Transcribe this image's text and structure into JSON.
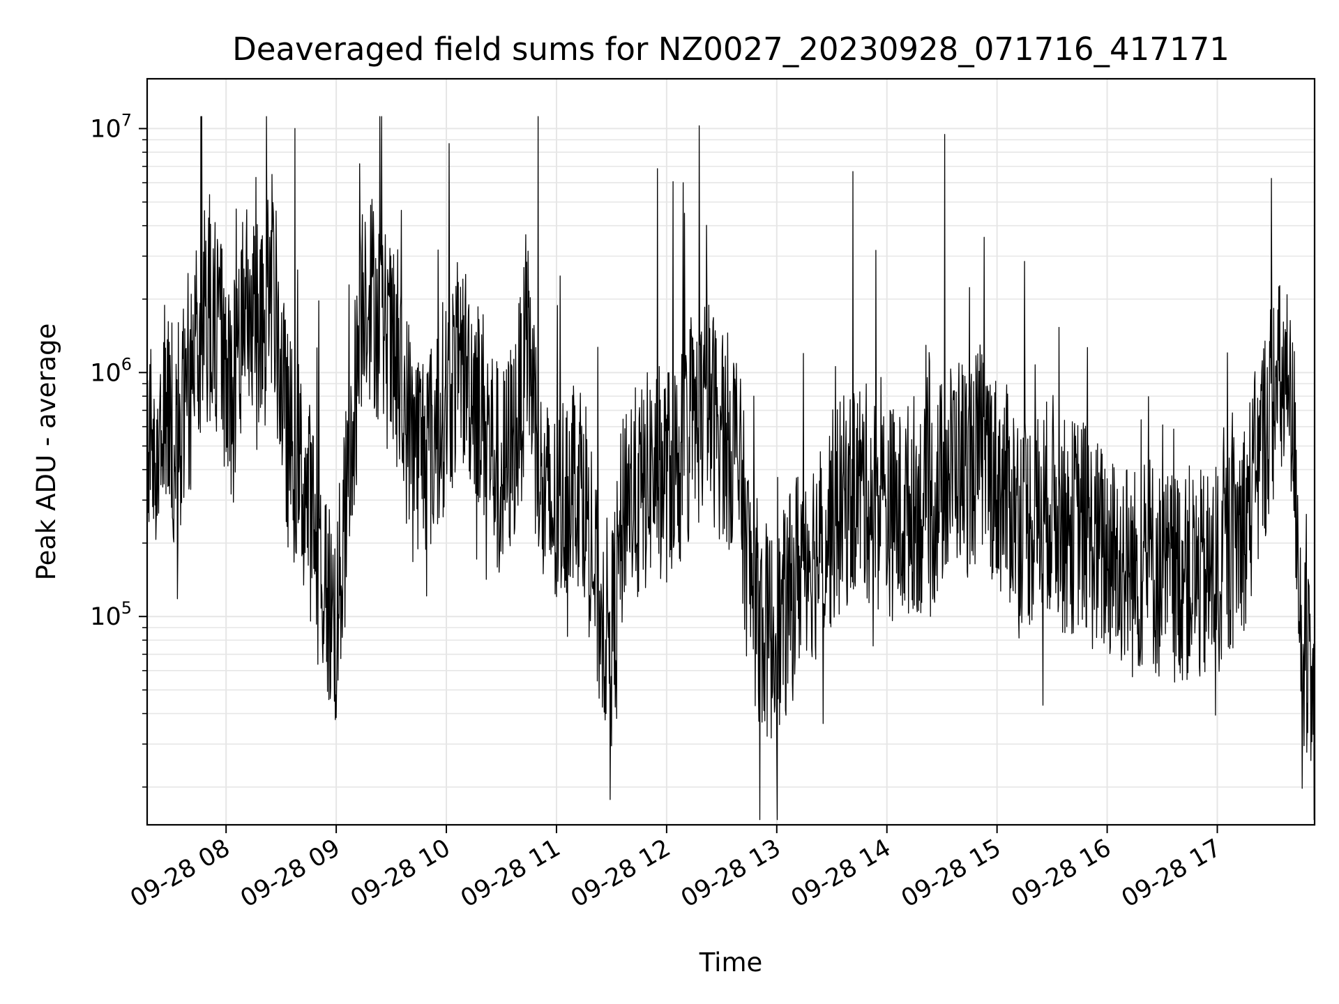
{
  "chart_data": {
    "type": "line",
    "title": "Deaveraged field sums for NZ0027_20230928_071716_417171",
    "xlabel": "Time",
    "ylabel": "Peak ADU - average",
    "yscale": "log",
    "ylim": [
      14000,
      16000000
    ],
    "xlim_hours": [
      "2023-09-28T07:17",
      "2023-09-28T17:53"
    ],
    "grid": true,
    "line_color": "#000000",
    "grid_color": "#e6e6e6",
    "x_ticks": [
      "09-28 08",
      "09-28 09",
      "09-28 10",
      "09-28 11",
      "09-28 12",
      "09-28 13",
      "09-28 14",
      "09-28 15",
      "09-28 16",
      "09-28 17"
    ],
    "y_ticks": [
      {
        "value": 100000,
        "base": "10",
        "exp": "5"
      },
      {
        "value": 1000000,
        "base": "10",
        "exp": "6"
      },
      {
        "value": 10000000,
        "base": "10",
        "exp": "7"
      }
    ],
    "series": [
      {
        "color": "#000000",
        "points": [
          [
            "07:17",
            400000
          ],
          [
            "07:25",
            650000
          ],
          [
            "07:33",
            550000
          ],
          [
            "07:40",
            800000
          ],
          [
            "07:48",
            1800000
          ],
          [
            "07:55",
            1500000
          ],
          [
            "08:03",
            700000
          ],
          [
            "08:10",
            2200000
          ],
          [
            "08:18",
            1200000
          ],
          [
            "08:25",
            2500000
          ],
          [
            "08:33",
            550000
          ],
          [
            "08:40",
            400000
          ],
          [
            "08:47",
            250000
          ],
          [
            "08:55",
            120000
          ],
          [
            "09:00",
            90000
          ],
          [
            "09:08",
            450000
          ],
          [
            "09:15",
            2500000
          ],
          [
            "09:22",
            1800000
          ],
          [
            "09:30",
            1200000
          ],
          [
            "09:37",
            700000
          ],
          [
            "09:45",
            500000
          ],
          [
            "09:52",
            500000
          ],
          [
            "10:00",
            800000
          ],
          [
            "10:08",
            1100000
          ],
          [
            "10:15",
            900000
          ],
          [
            "10:22",
            600000
          ],
          [
            "10:30",
            350000
          ],
          [
            "10:38",
            600000
          ],
          [
            "10:45",
            1300000
          ],
          [
            "10:52",
            300000
          ],
          [
            "11:00",
            250000
          ],
          [
            "11:08",
            400000
          ],
          [
            "11:15",
            350000
          ],
          [
            "11:22",
            120000
          ],
          [
            "11:30",
            80000
          ],
          [
            "11:38",
            350000
          ],
          [
            "11:45",
            300000
          ],
          [
            "11:52",
            400000
          ],
          [
            "12:00",
            380000
          ],
          [
            "12:08",
            450000
          ],
          [
            "12:15",
            600000
          ],
          [
            "12:22",
            750000
          ],
          [
            "12:30",
            550000
          ],
          [
            "12:38",
            500000
          ],
          [
            "12:45",
            150000
          ],
          [
            "12:52",
            90000
          ],
          [
            "13:00",
            80000
          ],
          [
            "13:08",
            120000
          ],
          [
            "13:15",
            200000
          ],
          [
            "13:22",
            180000
          ],
          [
            "13:30",
            250000
          ],
          [
            "13:38",
            300000
          ],
          [
            "13:45",
            350000
          ],
          [
            "13:52",
            300000
          ],
          [
            "14:00",
            280000
          ],
          [
            "14:08",
            250000
          ],
          [
            "14:15",
            300000
          ],
          [
            "14:22",
            250000
          ],
          [
            "14:30",
            350000
          ],
          [
            "14:38",
            450000
          ],
          [
            "14:45",
            400000
          ],
          [
            "14:52",
            500000
          ],
          [
            "15:00",
            350000
          ],
          [
            "15:08",
            300000
          ],
          [
            "15:15",
            250000
          ],
          [
            "15:22",
            250000
          ],
          [
            "15:30",
            300000
          ],
          [
            "15:38",
            220000
          ],
          [
            "15:45",
            250000
          ],
          [
            "15:52",
            200000
          ],
          [
            "16:00",
            180000
          ],
          [
            "16:08",
            170000
          ],
          [
            "16:15",
            150000
          ],
          [
            "16:22",
            180000
          ],
          [
            "16:30",
            140000
          ],
          [
            "16:38",
            150000
          ],
          [
            "16:45",
            150000
          ],
          [
            "16:52",
            140000
          ],
          [
            "17:00",
            150000
          ],
          [
            "17:08",
            200000
          ],
          [
            "17:15",
            250000
          ],
          [
            "17:22",
            400000
          ],
          [
            "17:30",
            800000
          ],
          [
            "17:37",
            900000
          ],
          [
            "17:42",
            500000
          ],
          [
            "17:46",
            80000
          ],
          [
            "17:50",
            50000
          ],
          [
            "17:53",
            28000
          ]
        ]
      }
    ]
  }
}
